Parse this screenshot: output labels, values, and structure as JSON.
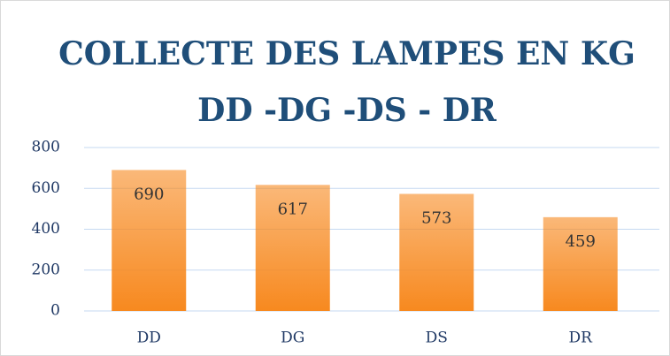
{
  "chart_data": {
    "type": "bar",
    "title": [
      "COLLECTE DES LAMPES EN KG",
      "DD -DG -DS - DR"
    ],
    "categories": [
      "DD",
      "DG",
      "DS",
      "DR"
    ],
    "values": [
      690,
      617,
      573,
      459
    ],
    "color": "#f7891f",
    "ylim": [
      0,
      800
    ],
    "yticks": [
      0,
      200,
      400,
      600,
      800
    ],
    "grid": true
  }
}
